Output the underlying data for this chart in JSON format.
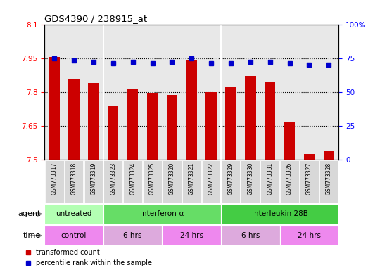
{
  "title": "GDS4390 / 238915_at",
  "samples": [
    "GSM773317",
    "GSM773318",
    "GSM773319",
    "GSM773323",
    "GSM773324",
    "GSM773325",
    "GSM773320",
    "GSM773321",
    "GSM773322",
    "GSM773329",
    "GSM773330",
    "GSM773331",
    "GSM773326",
    "GSM773327",
    "GSM773328"
  ],
  "red_values": [
    7.955,
    7.855,
    7.84,
    7.735,
    7.81,
    7.795,
    7.785,
    7.94,
    7.8,
    7.82,
    7.87,
    7.845,
    7.665,
    7.525,
    7.535
  ],
  "blue_values": [
    75,
    73,
    72,
    71,
    72,
    71,
    72,
    75,
    71,
    71,
    72,
    72,
    71,
    70,
    70
  ],
  "ylim_left": [
    7.5,
    8.1
  ],
  "ylim_right": [
    0,
    100
  ],
  "yticks_left": [
    7.5,
    7.65,
    7.8,
    7.95,
    8.1
  ],
  "yticks_right": [
    0,
    25,
    50,
    75,
    100
  ],
  "ytick_labels_left": [
    "7.5",
    "7.65",
    "7.8",
    "7.95",
    "8.1"
  ],
  "ytick_labels_right": [
    "0",
    "25",
    "50",
    "75",
    "100%"
  ],
  "hlines": [
    7.65,
    7.8,
    7.95
  ],
  "bar_color": "#cc0000",
  "dot_color": "#0000cc",
  "background_color": "#ffffff",
  "plot_bg_color": "#e8e8e8",
  "agent_segments": [
    {
      "label": "untreated",
      "start": 0,
      "end": 3,
      "color": "#b3ffb3"
    },
    {
      "label": "interferon-α",
      "start": 3,
      "end": 9,
      "color": "#66dd66"
    },
    {
      "label": "interleukin 28B",
      "start": 9,
      "end": 15,
      "color": "#44cc44"
    }
  ],
  "time_segments": [
    {
      "label": "control",
      "start": 0,
      "end": 3,
      "color": "#ee88ee"
    },
    {
      "label": "6 hrs",
      "start": 3,
      "end": 6,
      "color": "#ddaadd"
    },
    {
      "label": "24 hrs",
      "start": 6,
      "end": 9,
      "color": "#ee88ee"
    },
    {
      "label": "6 hrs",
      "start": 9,
      "end": 12,
      "color": "#ddaadd"
    },
    {
      "label": "24 hrs",
      "start": 12,
      "end": 15,
      "color": "#ee88ee"
    }
  ],
  "agent_label": "agent",
  "time_label": "time",
  "legend_red": "transformed count",
  "legend_blue": "percentile rank within the sample",
  "group_dividers": [
    2.5,
    8.5
  ]
}
